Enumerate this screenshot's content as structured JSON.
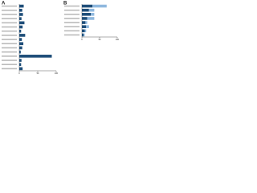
{
  "chart_data": [
    {
      "type": "hbar",
      "title": "A",
      "categories": [
        null,
        null,
        null,
        null,
        null,
        null,
        null,
        null,
        null,
        null,
        null,
        null,
        null,
        null,
        null,
        null
      ],
      "series": [
        {
          "color": "#1f4e79",
          "values": [
            12,
            8,
            10,
            6,
            14,
            9,
            5,
            16,
            7,
            11,
            8,
            4,
            88,
            6,
            5,
            9
          ]
        }
      ],
      "xlim": [
        0,
        100
      ],
      "xticks": [
        0,
        50,
        100
      ]
    },
    {
      "type": "hbar",
      "title": "B",
      "categories": [
        null,
        null,
        null,
        null,
        null,
        null,
        null,
        null
      ],
      "series": [
        {
          "color": "#1f4e79",
          "values": [
            30,
            20,
            25,
            15,
            10,
            12,
            8,
            5
          ]
        },
        {
          "color": "#8fb8de",
          "values": [
            40,
            15,
            10,
            20,
            5,
            8,
            4,
            3
          ]
        }
      ],
      "xlim": [
        0,
        100
      ],
      "xticks": [
        0,
        50,
        100
      ]
    }
  ]
}
